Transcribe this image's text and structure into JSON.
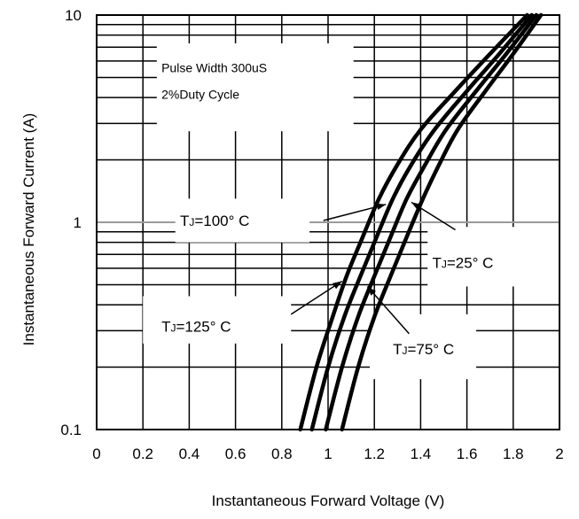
{
  "chart_data": {
    "type": "line",
    "xlabel": "Instantaneous Forward Voltage (V)",
    "ylabel": "Instantaneous Forward Current (A)",
    "xlim": [
      0,
      2
    ],
    "ylim": [
      0.1,
      10
    ],
    "yscale": "log",
    "x_ticks": [
      "0",
      "0.2",
      "0.4",
      "0.6",
      "0.8",
      "1",
      "1.2",
      "1.4",
      "1.6",
      "1.8",
      "2"
    ],
    "y_ticks": [
      "0.1",
      "1",
      "10"
    ],
    "grid": true,
    "annotation": [
      "Pulse Width 300uS",
      "2%Duty Cycle"
    ],
    "series": [
      {
        "name": "TJ=125° C",
        "label_main": "T",
        "label_sub": "J",
        "label_rest": "=125° C",
        "x": [
          0.88,
          0.95,
          1.02,
          1.08,
          1.15,
          1.22,
          1.3,
          1.4,
          1.55,
          1.7,
          1.86
        ],
        "y": [
          0.1,
          0.2,
          0.35,
          0.55,
          0.85,
          1.3,
          1.9,
          2.8,
          4.3,
          6.5,
          10
        ]
      },
      {
        "name": "TJ=100° C",
        "label_main": "T",
        "label_sub": "J",
        "label_rest": "=100° C",
        "x": [
          0.93,
          1.0,
          1.07,
          1.14,
          1.21,
          1.28,
          1.36,
          1.46,
          1.6,
          1.74,
          1.88
        ],
        "y": [
          0.1,
          0.2,
          0.35,
          0.55,
          0.85,
          1.3,
          1.9,
          2.8,
          4.3,
          6.5,
          10
        ]
      },
      {
        "name": "TJ=75° C",
        "label_main": "T",
        "label_sub": "J",
        "label_rest": "=75° C",
        "x": [
          0.99,
          1.06,
          1.13,
          1.2,
          1.27,
          1.34,
          1.42,
          1.51,
          1.64,
          1.77,
          1.9
        ],
        "y": [
          0.1,
          0.2,
          0.35,
          0.55,
          0.85,
          1.3,
          1.9,
          2.8,
          4.3,
          6.5,
          10
        ]
      },
      {
        "name": "TJ=25° C",
        "label_main": "T",
        "label_sub": "J",
        "label_rest": "=25° C",
        "x": [
          1.06,
          1.13,
          1.2,
          1.27,
          1.34,
          1.41,
          1.48,
          1.56,
          1.68,
          1.8,
          1.92
        ],
        "y": [
          0.1,
          0.2,
          0.35,
          0.55,
          0.85,
          1.3,
          1.9,
          2.8,
          4.3,
          6.5,
          10
        ]
      }
    ],
    "callouts": [
      {
        "series": 1,
        "label_end": [
          0.98,
          1.02
        ],
        "target": [
          1.25,
          1.22
        ]
      },
      {
        "series": 0,
        "label_end": [
          0.84,
          0.36
        ],
        "target": [
          1.06,
          0.52
        ]
      },
      {
        "series": 3,
        "label_end": [
          1.55,
          0.92
        ],
        "target": [
          1.36,
          1.25
        ]
      },
      {
        "series": 2,
        "label_end": [
          1.35,
          0.29
        ],
        "target": [
          1.17,
          0.49
        ]
      }
    ]
  }
}
